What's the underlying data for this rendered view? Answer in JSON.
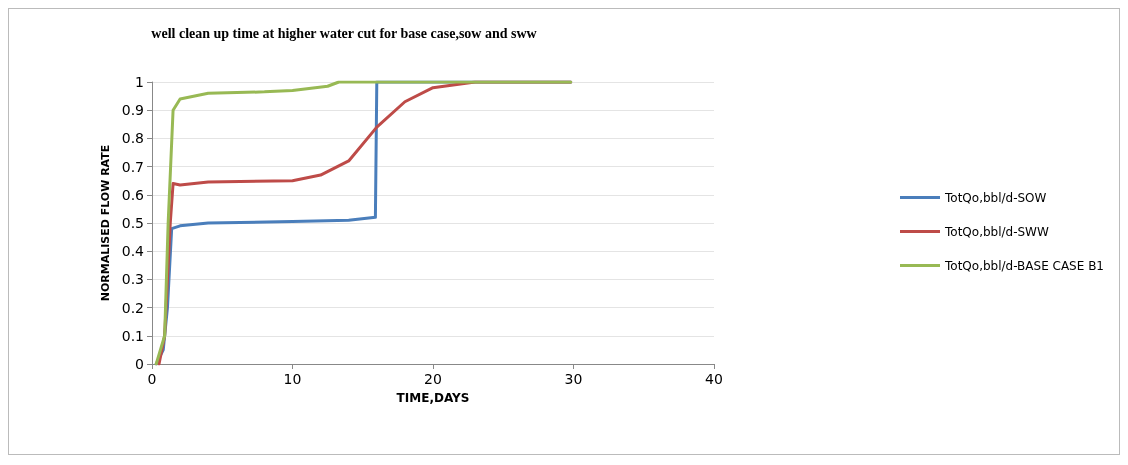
{
  "chart_data": {
    "type": "line",
    "title": "well clean up time at higher water cut for base case,sow and sww",
    "xlabel": "TIME,DAYS",
    "ylabel": "NORMALISED FLOW RATE",
    "xlim": [
      0,
      40
    ],
    "xticks": [
      0,
      10,
      20,
      30,
      40
    ],
    "ylim": [
      0,
      1
    ],
    "yticks": [
      0,
      0.1,
      0.2,
      0.3,
      0.4,
      0.5,
      0.6,
      0.7,
      0.8,
      0.9,
      1
    ],
    "grid": "y",
    "legend": "right",
    "marker": "none",
    "line_style": "solid",
    "series": [
      {
        "name": "TotQo,bbl/d-SOW",
        "color": "#4a7ebb",
        "x": [
          0.3,
          0.8,
          1.1,
          1.4,
          2,
          4,
          10,
          14,
          15.9,
          16,
          20,
          29.8
        ],
        "values": [
          0,
          0.05,
          0.2,
          0.48,
          0.49,
          0.5,
          0.505,
          0.51,
          0.52,
          1,
          1,
          1
        ]
      },
      {
        "name": "TotQo,bbl/d-SWW",
        "color": "#be4b48",
        "x": [
          0.5,
          0.9,
          1.1,
          1.3,
          1.5,
          2,
          4,
          10,
          12,
          14,
          16,
          18,
          20,
          23,
          29.8
        ],
        "values": [
          0,
          0.1,
          0.3,
          0.5,
          0.64,
          0.635,
          0.645,
          0.65,
          0.67,
          0.72,
          0.84,
          0.93,
          0.98,
          1,
          1
        ]
      },
      {
        "name": "TotQo,bbl/d-BASE CASE B1",
        "color": "#98b954",
        "x": [
          0.3,
          0.9,
          1.15,
          1.5,
          2,
          4,
          8,
          10,
          12.5,
          13.3,
          29.8
        ],
        "values": [
          0,
          0.1,
          0.5,
          0.9,
          0.94,
          0.96,
          0.965,
          0.97,
          0.985,
          1,
          1
        ]
      }
    ]
  }
}
